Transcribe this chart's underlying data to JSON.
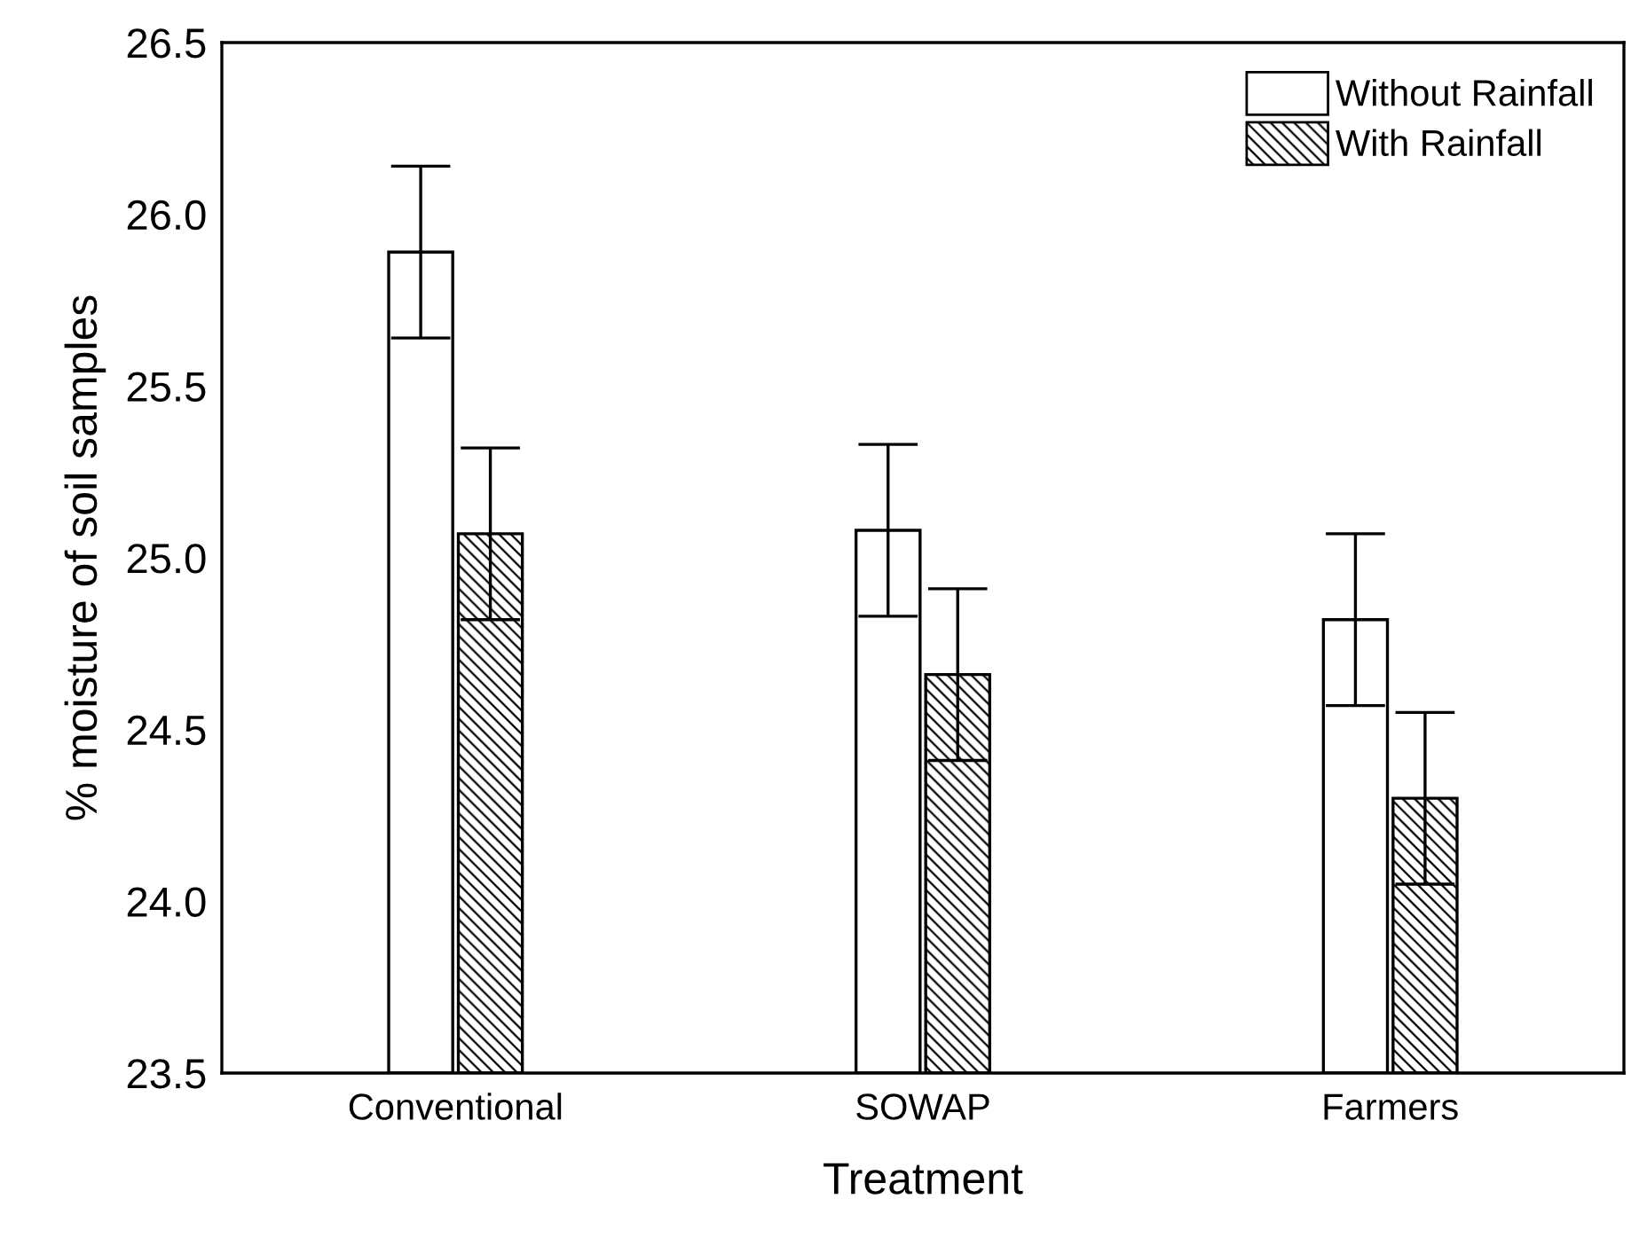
{
  "chart_data": {
    "type": "bar",
    "xlabel": "Treatment",
    "ylabel": "% moisture of soil samples",
    "categories": [
      "Conventional",
      "SOWAP",
      "Farmers"
    ],
    "series": [
      {
        "name": "Without Rainfall",
        "color": "#ffffff",
        "values": [
          25.89,
          25.08,
          24.82
        ],
        "errors": [
          0.25,
          0.25,
          0.25
        ]
      },
      {
        "name": "With Rainfall",
        "color": "#000000",
        "values": [
          25.07,
          24.66,
          24.3
        ],
        "errors": [
          0.25,
          0.25,
          0.25
        ]
      }
    ],
    "ylim": [
      23.5,
      26.5
    ],
    "yticks": [
      {
        "value": 23.5,
        "label": "23.5"
      },
      {
        "value": 24.0,
        "label": "24.0"
      },
      {
        "value": 24.5,
        "label": "24.5"
      },
      {
        "value": 25.0,
        "label": "25.0"
      },
      {
        "value": 25.5,
        "label": "25.5"
      },
      {
        "value": 26.0,
        "label": "26.0"
      },
      {
        "value": 26.5,
        "label": "26.5"
      }
    ],
    "grid": false,
    "legend": "top right"
  }
}
